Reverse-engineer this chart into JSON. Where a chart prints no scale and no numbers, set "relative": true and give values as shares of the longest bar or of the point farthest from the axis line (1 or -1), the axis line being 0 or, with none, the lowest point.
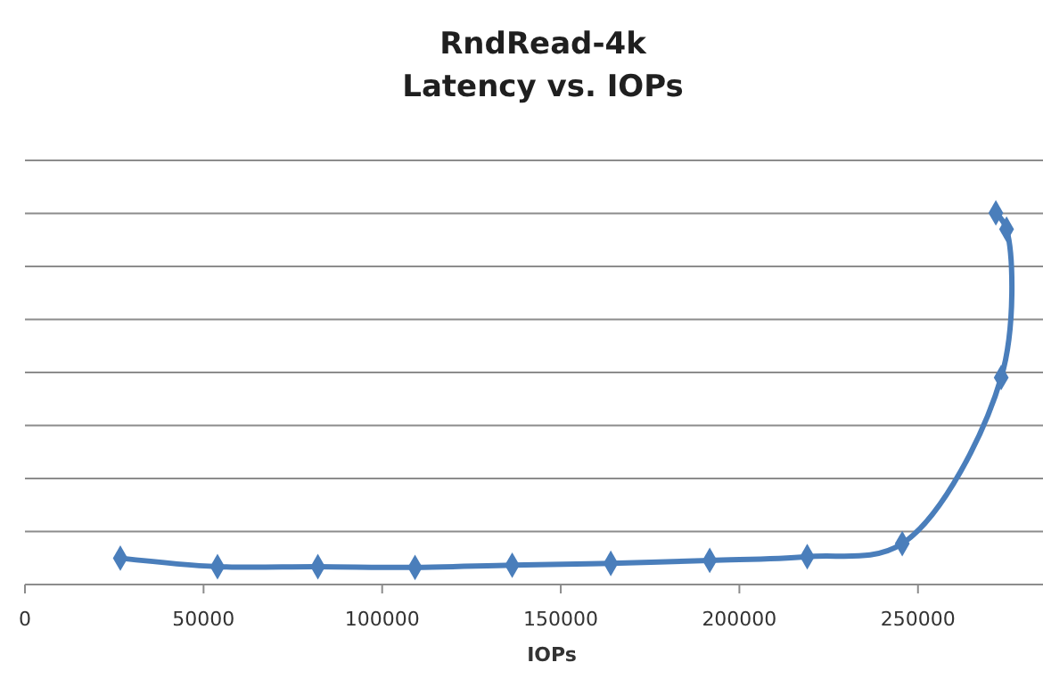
{
  "chart_data": {
    "type": "line",
    "title": "RndRead-4k\nLatency vs. IOPs",
    "xlabel": "IOPs",
    "relative": true,
    "grid": "y",
    "marker": "diamond",
    "line_style": "solid",
    "xlim": [
      0,
      285000
    ],
    "xticks": [
      0,
      50000,
      100000,
      150000,
      200000,
      250000
    ],
    "series": [
      {
        "color": "#4a7ebb",
        "x": [
          26700,
          53900,
          82000,
          109200,
          136400,
          164000,
          191700,
          219000,
          245600,
          273300,
          274800,
          271800
        ],
        "values": [
          0.071,
          0.048,
          0.048,
          0.046,
          0.052,
          0.057,
          0.065,
          0.075,
          0.11,
          0.557,
          0.956,
          1
        ]
      }
    ]
  }
}
